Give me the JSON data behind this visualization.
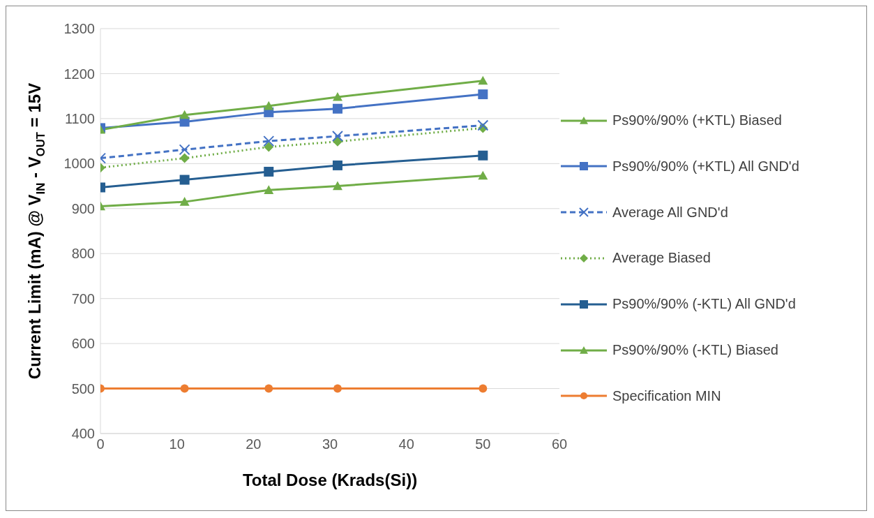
{
  "chart_data": {
    "type": "line",
    "xlabel": "Total Dose (Krads(Si))",
    "ylabel": "Current Limit (mA) @ V$_{IN}$ - V$_{OUT}$ = 15V",
    "x": [
      0,
      11,
      22,
      31,
      50
    ],
    "xlim": [
      0,
      60
    ],
    "xticks": [
      0,
      10,
      20,
      30,
      40,
      50,
      60
    ],
    "ylim": [
      400,
      1300
    ],
    "yticks": [
      400,
      500,
      600,
      700,
      800,
      900,
      1000,
      1100,
      1200,
      1300
    ],
    "grid": "y",
    "legend": "right",
    "series": [
      {
        "name": "Ps90%/90% (+KTL) Biased",
        "color": "#70ad47",
        "marker": "triangle",
        "line_style": "solid",
        "values": [
          1075,
          1108,
          1128,
          1148,
          1184
        ]
      },
      {
        "name": "Ps90%/90% (+KTL) All GND'd",
        "color": "#4472c4",
        "marker": "square",
        "line_style": "solid",
        "values": [
          1079,
          1093,
          1114,
          1122,
          1154
        ]
      },
      {
        "name": "Average All GND'd",
        "color": "#4472c4",
        "marker": "cross",
        "line_style": "dashed",
        "values": [
          1012,
          1031,
          1050,
          1061,
          1085
        ]
      },
      {
        "name": "Average Biased",
        "color": "#70ad47",
        "marker": "diamond",
        "line_style": "dotted",
        "values": [
          991,
          1012,
          1037,
          1049,
          1079
        ]
      },
      {
        "name": "Ps90%/90% (-KTL) All GND'd",
        "color": "#255e91",
        "marker": "square",
        "line_style": "solid",
        "values": [
          947,
          964,
          982,
          996,
          1018
        ]
      },
      {
        "name": "Ps90%/90% (-KTL) Biased",
        "color": "#70ad47",
        "marker": "triangle",
        "line_style": "solid",
        "values": [
          905,
          915,
          941,
          950,
          973
        ]
      },
      {
        "name": "Specification MIN",
        "color": "#ed7d31",
        "marker": "circle",
        "line_style": "solid",
        "values": [
          500,
          500,
          500,
          500,
          500
        ]
      }
    ]
  }
}
